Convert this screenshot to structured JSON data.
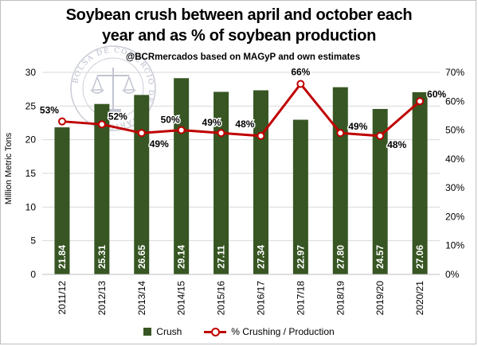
{
  "title": "Soybean crush between april and october each year and as % of soybean production",
  "subtitle": "@BCRmercados based on MAGyP and own estimates",
  "seal_text": "BOLSA DE COMERCIO DE ROSARIO",
  "colors": {
    "bar": "#375623",
    "line": "#c00000",
    "grid": "#d9d9d9"
  },
  "legend": {
    "bar_label": "Crush",
    "line_label": "% Crushing / Production"
  },
  "chart_data": {
    "type": "bar+line",
    "categories": [
      "2011/12",
      "2012/13",
      "2013/14",
      "2014/15",
      "2015/16",
      "2016/17",
      "2017/18",
      "2018/19",
      "2019/20",
      "2020/21"
    ],
    "series": [
      {
        "name": "Crush",
        "type": "bar",
        "axis": "left",
        "values": [
          21.84,
          25.31,
          26.65,
          29.14,
          27.11,
          27.34,
          22.97,
          27.8,
          24.57,
          27.06
        ],
        "labels": [
          "21.84",
          "25.31",
          "26.65",
          "29.14",
          "27.11",
          "27.34",
          "22.97",
          "27.80",
          "24.57",
          "27.06"
        ]
      },
      {
        "name": "% Crushing / Production",
        "type": "line",
        "axis": "right",
        "values": [
          53,
          52,
          49,
          50,
          49,
          48,
          66,
          49,
          48,
          60
        ],
        "labels": [
          "53%",
          "52%",
          "49%",
          "50%",
          "49%",
          "48%",
          "66%",
          "49%",
          "48%",
          "60%"
        ]
      }
    ],
    "ylabel": "Million Metric Tons",
    "ylim": [
      0,
      30
    ],
    "yticks": [
      "0",
      "5",
      "10",
      "15",
      "20",
      "25",
      "30"
    ],
    "y2lim": [
      0,
      70
    ],
    "y2ticks": [
      "0%",
      "10%",
      "20%",
      "30%",
      "40%",
      "50%",
      "60%",
      "70%"
    ],
    "grid": true,
    "legend_position": "bottom"
  }
}
